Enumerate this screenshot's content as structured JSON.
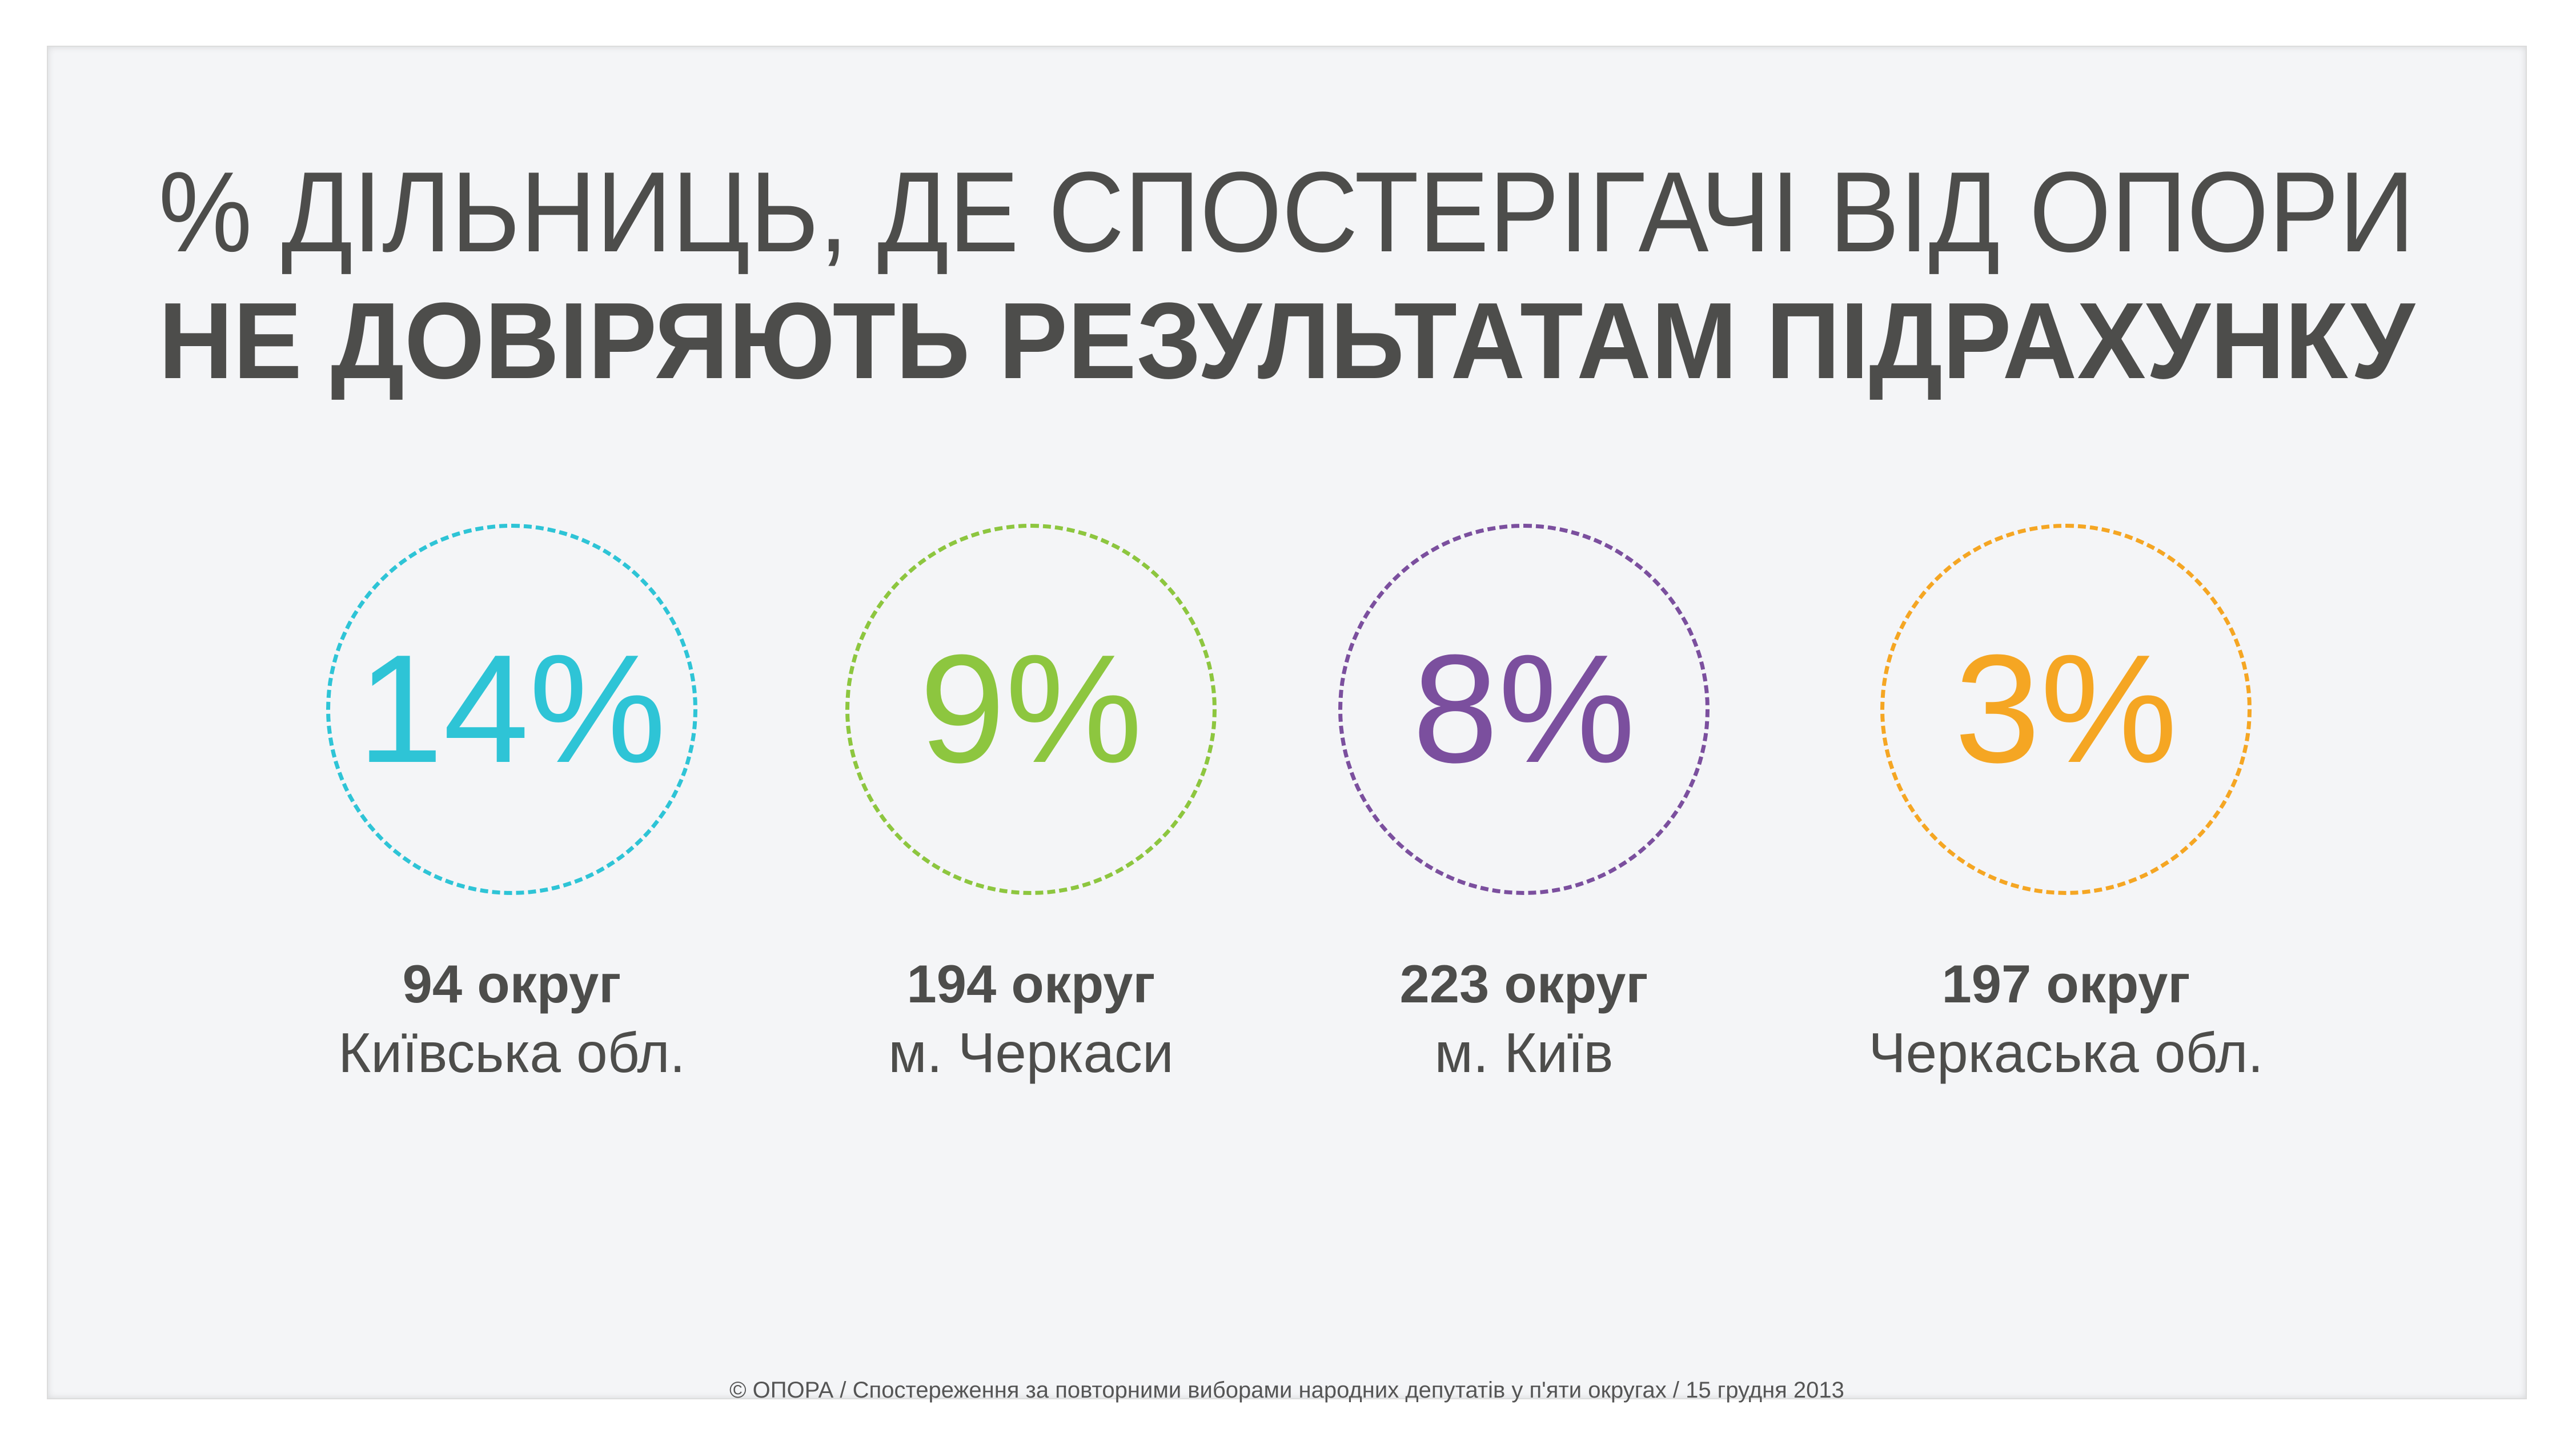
{
  "title": {
    "line1": "% ДІЛЬНИЦЬ, ДЕ СПОСТЕРІГАЧІ ВІД ОПОРИ",
    "line2": "НЕ ДОВІРЯЮТЬ РЕЗУЛЬТАТАМ  ПІДРАХУНКУ"
  },
  "stats": [
    {
      "value": "14%",
      "district": "94 округ",
      "region": "Київська обл.",
      "color": "#2ec4d6"
    },
    {
      "value": "9%",
      "district": "194 округ",
      "region": "м. Черкаси",
      "color": "#8dc63f"
    },
    {
      "value": "8%",
      "district": "223 округ",
      "region": "м. Київ",
      "color": "#7b4f9e"
    },
    {
      "value": "3%",
      "district": "197 округ",
      "region": "Черкаська обл.",
      "color": "#f5a623"
    }
  ],
  "footer": "© ОПОРА / Спостереження за повторними виборами народних депутатів  у п'яти округах / 15 грудня 2013"
}
